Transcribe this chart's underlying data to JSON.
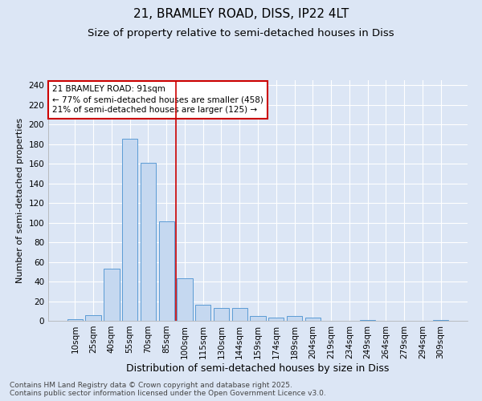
{
  "title": "21, BRAMLEY ROAD, DISS, IP22 4LT",
  "subtitle": "Size of property relative to semi-detached houses in Diss",
  "xlabel": "Distribution of semi-detached houses by size in Diss",
  "ylabel": "Number of semi-detached properties",
  "categories": [
    "10sqm",
    "25sqm",
    "40sqm",
    "55sqm",
    "70sqm",
    "85sqm",
    "100sqm",
    "115sqm",
    "130sqm",
    "144sqm",
    "159sqm",
    "174sqm",
    "189sqm",
    "204sqm",
    "219sqm",
    "234sqm",
    "249sqm",
    "264sqm",
    "279sqm",
    "294sqm",
    "309sqm"
  ],
  "values": [
    2,
    6,
    53,
    185,
    161,
    101,
    43,
    16,
    13,
    13,
    5,
    3,
    5,
    3,
    0,
    0,
    1,
    0,
    0,
    0,
    1
  ],
  "bar_color": "#c5d8f0",
  "bar_edge_color": "#5b9bd5",
  "vline_index": 6,
  "vline_color": "#cc0000",
  "annotation_text_line1": "21 BRAMLEY ROAD: 91sqm",
  "annotation_text_line2": "← 77% of semi-detached houses are smaller (458)",
  "annotation_text_line3": "21% of semi-detached houses are larger (125) →",
  "annotation_box_facecolor": "#ffffff",
  "annotation_box_edgecolor": "#cc0000",
  "background_color": "#dce6f5",
  "grid_color": "#ffffff",
  "ylim": [
    0,
    245
  ],
  "yticks": [
    0,
    20,
    40,
    60,
    80,
    100,
    120,
    140,
    160,
    180,
    200,
    220,
    240
  ],
  "footer_line1": "Contains HM Land Registry data © Crown copyright and database right 2025.",
  "footer_line2": "Contains public sector information licensed under the Open Government Licence v3.0.",
  "title_fontsize": 11,
  "subtitle_fontsize": 9.5,
  "xlabel_fontsize": 9,
  "ylabel_fontsize": 8,
  "tick_fontsize": 7.5,
  "annotation_fontsize": 7.5,
  "footer_fontsize": 6.5
}
